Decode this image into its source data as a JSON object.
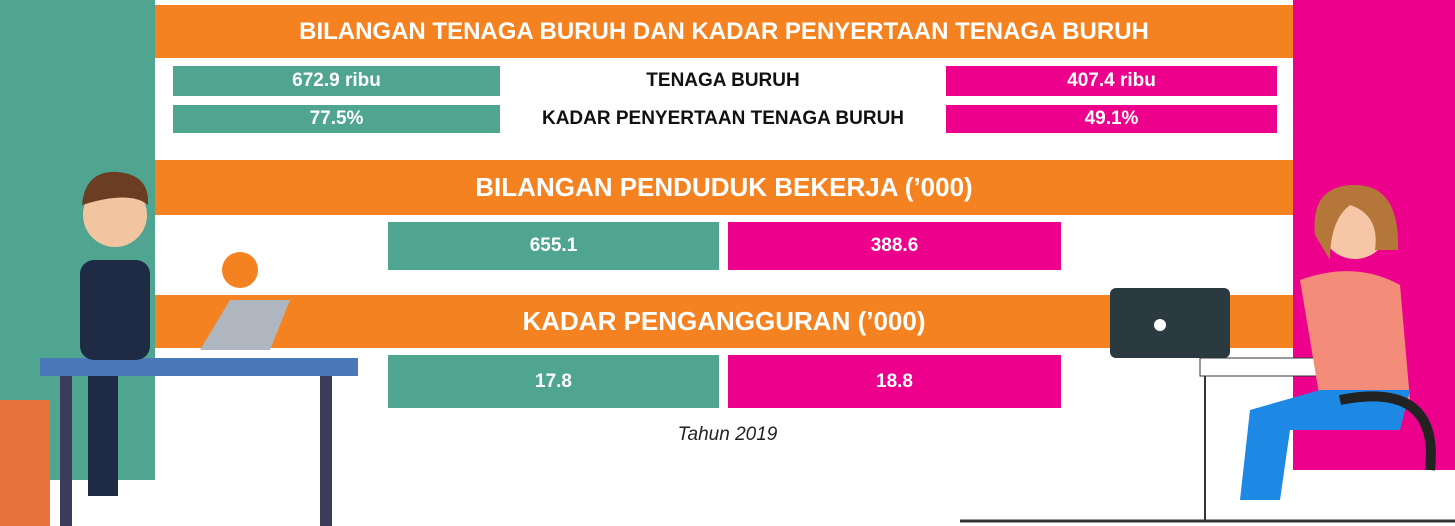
{
  "title": "BILANGAN TENAGA BURUH DAN KADAR PENYERTAAN TENAGA BURUH",
  "labour_force": {
    "label": "TENAGA BURUH",
    "male": "672.9 ribu",
    "female": "407.4 ribu"
  },
  "participation": {
    "label": "KADAR PENYERTAAN TENAGA BURUH",
    "male": "77.5%",
    "female": "49.1%"
  },
  "employed": {
    "title": "BILANGAN PENDUDUK BEKERJA (’000)",
    "male": "655.1",
    "female": "388.6"
  },
  "unemployment": {
    "title": "KADAR PENGANGGURAN (’000)",
    "male": "17.8",
    "female": "18.8"
  },
  "footnote": "Tahun 2019"
}
